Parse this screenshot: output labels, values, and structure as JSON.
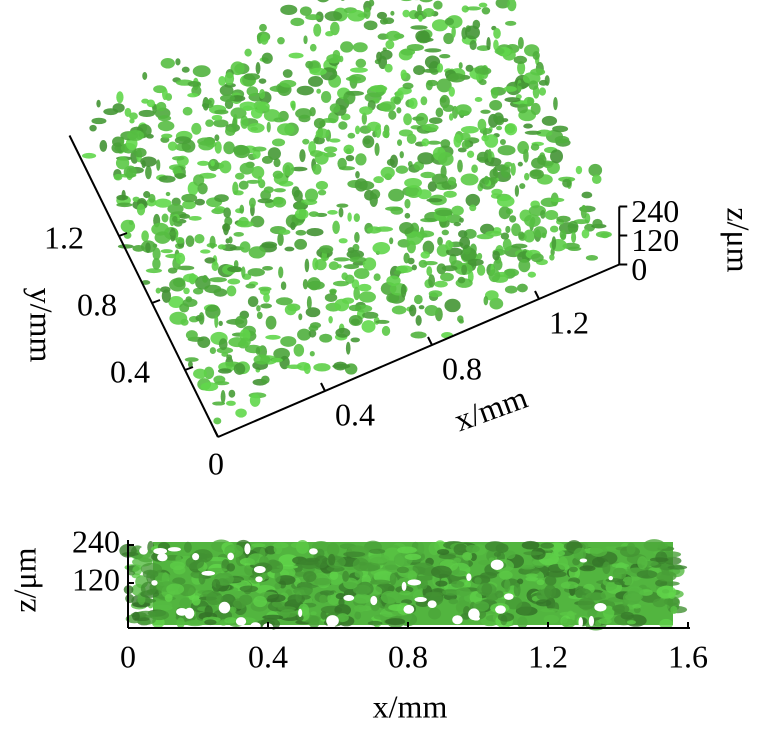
{
  "chart_data": [
    {
      "type": "volume3d",
      "color": "#52b53f",
      "xlabel": "x/mm",
      "ylabel": "y/mm",
      "zlabel": "z/μm",
      "xlim": [
        0,
        1.5
      ],
      "ylim": [
        0,
        1.8
      ],
      "zlim": [
        0,
        240
      ],
      "xticks": [
        0,
        0.4,
        0.8,
        1.2
      ],
      "yticks": [
        0.4,
        0.8,
        1.2
      ],
      "zticks": [
        0,
        120,
        240
      ]
    },
    {
      "type": "projection",
      "color": "#52b53f",
      "xlabel": "x/mm",
      "ylabel": "z/μm",
      "xlim": [
        0,
        1.6
      ],
      "ylim": [
        0,
        240
      ],
      "xticks": [
        0,
        0.4,
        0.8,
        1.2,
        1.6
      ],
      "yticks": [
        120,
        240
      ]
    }
  ]
}
